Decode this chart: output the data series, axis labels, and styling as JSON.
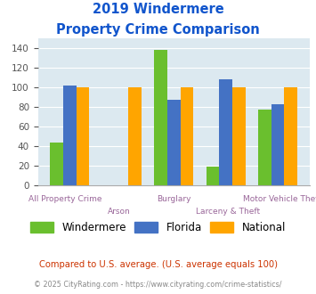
{
  "title_line1": "2019 Windermere",
  "title_line2": "Property Crime Comparison",
  "categories": [
    "All Property Crime",
    "Arson",
    "Burglary",
    "Larceny & Theft",
    "Motor Vehicle Theft"
  ],
  "windermere": [
    44,
    0,
    138,
    19,
    77
  ],
  "florida": [
    102,
    0,
    87,
    108,
    83
  ],
  "national": [
    100,
    100,
    100,
    100,
    100
  ],
  "windermere_color": "#6abf2e",
  "florida_color": "#4472c4",
  "national_color": "#ffa500",
  "bg_color": "#dce9f0",
  "ylim": [
    0,
    150
  ],
  "yticks": [
    0,
    20,
    40,
    60,
    80,
    100,
    120,
    140
  ],
  "title_color": "#1155cc",
  "xlabel_color": "#996699",
  "legend_label1": "Windermere",
  "legend_label2": "Florida",
  "legend_label3": "National",
  "footnote1": "Compared to U.S. average. (U.S. average equals 100)",
  "footnote2": "© 2025 CityRating.com - https://www.cityrating.com/crime-statistics/",
  "footnote1_color": "#cc3300",
  "footnote2_color": "#888888",
  "labels_row1": [
    "All Property Crime",
    "",
    "Burglary",
    "",
    "Motor Vehicle Theft"
  ],
  "labels_row2": [
    "",
    "Arson",
    "",
    "Larceny & Theft",
    ""
  ]
}
